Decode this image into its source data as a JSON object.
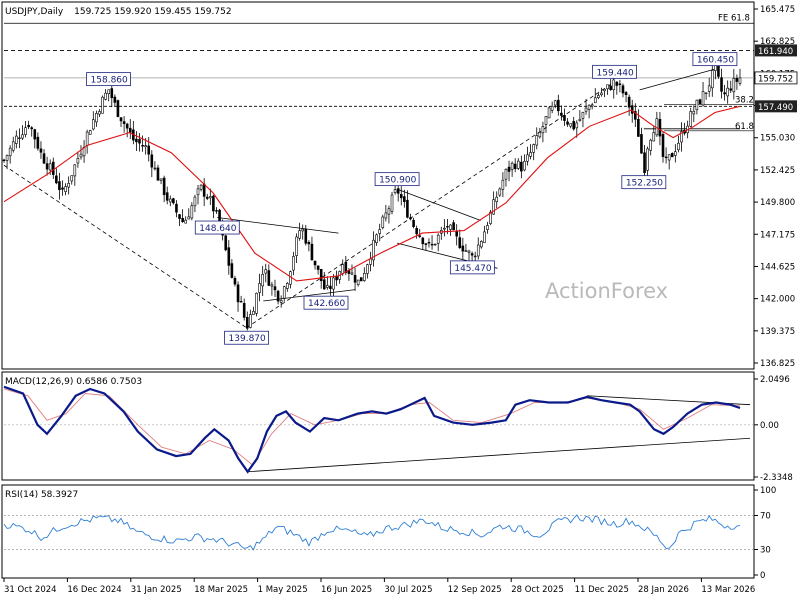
{
  "chart_data": {
    "type": "candlestick",
    "symbol_label": "USDJPY,Daily",
    "ohlc_readout": "159.725 159.920 159.455 159.752",
    "watermark": "ActionForex",
    "last_price": "159.752",
    "x_ticks": [
      "31 Oct 2024",
      "16 Dec 2024",
      "31 Jan 2025",
      "18 Mar 2025",
      "1 May 2025",
      "16 Jun 2025",
      "30 Jul 2025",
      "12 Sep 2025",
      "28 Oct 2025",
      "11 Dec 2025",
      "28 Jan 2026",
      "13 Mar 2026"
    ],
    "price_ticks": [
      "165.475",
      "162.825",
      "160.175",
      "157.525",
      "155.030",
      "152.425",
      "149.800",
      "147.175",
      "144.625",
      "142.000",
      "139.375",
      "136.825"
    ],
    "ylim": [
      136.825,
      165.475
    ],
    "levels": [
      {
        "label": "FE 61.8",
        "value": 164.1,
        "box": false
      },
      {
        "label": "161.940",
        "value": 161.94,
        "box": true
      },
      {
        "label": "157.490",
        "value": 157.49,
        "box": true
      }
    ],
    "fib_labels": [
      {
        "label": "38.2",
        "value": 157.8
      },
      {
        "label": "61.8",
        "value": 155.7
      }
    ],
    "swing_labels": [
      {
        "label": "158.860",
        "value": 158.86
      },
      {
        "label": "148.640",
        "value": 148.64
      },
      {
        "label": "139.870",
        "value": 139.87
      },
      {
        "label": "142.660",
        "value": 142.66
      },
      {
        "label": "150.900",
        "value": 150.9
      },
      {
        "label": "145.470",
        "value": 145.47
      },
      {
        "label": "159.440",
        "value": 159.44
      },
      {
        "label": "152.250",
        "value": 152.25
      },
      {
        "label": "160.450",
        "value": 160.45
      }
    ],
    "price_path": [
      [
        0,
        153.2
      ],
      [
        6,
        155.0
      ],
      [
        12,
        156.2
      ],
      [
        18,
        153.6
      ],
      [
        24,
        152.0
      ],
      [
        28,
        150.5
      ],
      [
        34,
        152.8
      ],
      [
        40,
        155.4
      ],
      [
        46,
        157.6
      ],
      [
        50,
        158.86
      ],
      [
        54,
        157.2
      ],
      [
        58,
        156.0
      ],
      [
        62,
        154.8
      ],
      [
        68,
        154.2
      ],
      [
        72,
        152.5
      ],
      [
        78,
        150.2
      ],
      [
        82,
        149.2
      ],
      [
        86,
        148.2
      ],
      [
        90,
        149.6
      ],
      [
        94,
        151.0
      ],
      [
        98,
        150.2
      ],
      [
        102,
        148.64
      ],
      [
        106,
        146.0
      ],
      [
        110,
        143.2
      ],
      [
        114,
        141.4
      ],
      [
        116,
        139.87
      ],
      [
        120,
        142.0
      ],
      [
        124,
        144.6
      ],
      [
        128,
        143.2
      ],
      [
        132,
        142.2
      ],
      [
        136,
        144.0
      ],
      [
        140,
        146.8
      ],
      [
        142,
        148.0
      ],
      [
        146,
        146.2
      ],
      [
        150,
        144.4
      ],
      [
        154,
        142.66
      ],
      [
        158,
        143.6
      ],
      [
        162,
        145.0
      ],
      [
        166,
        144.2
      ],
      [
        170,
        143.4
      ],
      [
        174,
        145.2
      ],
      [
        178,
        147.0
      ],
      [
        182,
        148.6
      ],
      [
        186,
        150.2
      ],
      [
        188,
        150.9
      ],
      [
        192,
        149.4
      ],
      [
        196,
        148.0
      ],
      [
        200,
        147.0
      ],
      [
        204,
        146.2
      ],
      [
        208,
        147.2
      ],
      [
        212,
        148.0
      ],
      [
        216,
        147.0
      ],
      [
        220,
        146.2
      ],
      [
        224,
        145.47
      ],
      [
        228,
        146.8
      ],
      [
        232,
        148.6
      ],
      [
        236,
        150.5
      ],
      [
        240,
        152.2
      ],
      [
        244,
        153.0
      ],
      [
        248,
        152.6
      ],
      [
        252,
        153.8
      ],
      [
        256,
        155.2
      ],
      [
        260,
        156.8
      ],
      [
        264,
        157.6
      ],
      [
        268,
        156.6
      ],
      [
        272,
        155.8
      ],
      [
        276,
        156.6
      ],
      [
        280,
        157.6
      ],
      [
        284,
        158.4
      ],
      [
        288,
        158.8
      ],
      [
        292,
        159.44
      ],
      [
        296,
        158.6
      ],
      [
        300,
        157.2
      ],
      [
        304,
        155.0
      ],
      [
        306,
        152.25
      ],
      [
        308,
        154.6
      ],
      [
        312,
        156.4
      ],
      [
        314,
        154.4
      ],
      [
        316,
        152.8
      ],
      [
        320,
        153.8
      ],
      [
        324,
        155.2
      ],
      [
        328,
        156.6
      ],
      [
        332,
        157.8
      ],
      [
        336,
        158.8
      ],
      [
        340,
        160.45
      ],
      [
        344,
        158.2
      ],
      [
        348,
        159.2
      ],
      [
        352,
        159.752
      ]
    ],
    "sma": [
      [
        0,
        149.9
      ],
      [
        20,
        152.0
      ],
      [
        40,
        154.4
      ],
      [
        60,
        155.4
      ],
      [
        80,
        153.8
      ],
      [
        100,
        150.6
      ],
      [
        120,
        145.8
      ],
      [
        140,
        143.6
      ],
      [
        160,
        144.0
      ],
      [
        180,
        145.8
      ],
      [
        200,
        147.4
      ],
      [
        220,
        147.6
      ],
      [
        240,
        149.8
      ],
      [
        260,
        153.4
      ],
      [
        280,
        155.9
      ],
      [
        300,
        157.2
      ],
      [
        310,
        156.0
      ],
      [
        320,
        155.0
      ],
      [
        330,
        155.9
      ],
      [
        340,
        157.0
      ],
      [
        352,
        157.49
      ]
    ],
    "trendlines": [
      [
        [
          0,
          152.8
        ],
        [
          116,
          139.87
        ]
      ],
      [
        [
          116,
          139.87
        ],
        [
          292,
          159.44
        ]
      ],
      [
        [
          102,
          148.64
        ],
        [
          160,
          147.4
        ]
      ],
      [
        [
          124,
          142.0
        ],
        [
          168,
          142.9
        ]
      ],
      [
        [
          188,
          150.9
        ],
        [
          228,
          148.4
        ]
      ],
      [
        [
          188,
          146.6
        ],
        [
          236,
          144.6
        ]
      ],
      [
        [
          304,
          158.8
        ],
        [
          340,
          160.45
        ]
      ],
      [
        [
          306,
          155.7
        ],
        [
          352,
          155.7
        ]
      ]
    ],
    "macd": {
      "label": "MACD(12,26,9) 0.6586 0.7503",
      "ticks": [
        "2.0496",
        "0.00",
        "-2.3348"
      ],
      "ylim": [
        -2.3348,
        2.0496
      ],
      "zero_label": "0.00",
      "main": [
        [
          0,
          1.7
        ],
        [
          8,
          1.4
        ],
        [
          14,
          0.0
        ],
        [
          18,
          -0.4
        ],
        [
          24,
          0.4
        ],
        [
          30,
          1.3
        ],
        [
          36,
          1.6
        ],
        [
          42,
          1.4
        ],
        [
          50,
          0.6
        ],
        [
          56,
          -0.3
        ],
        [
          64,
          -1.1
        ],
        [
          72,
          -1.4
        ],
        [
          78,
          -1.3
        ],
        [
          84,
          -0.6
        ],
        [
          88,
          -0.2
        ],
        [
          94,
          -0.7
        ],
        [
          98,
          -1.5
        ],
        [
          102,
          -2.1
        ],
        [
          106,
          -1.5
        ],
        [
          110,
          -0.3
        ],
        [
          114,
          0.4
        ],
        [
          118,
          0.6
        ],
        [
          122,
          0.1
        ],
        [
          128,
          -0.3
        ],
        [
          134,
          0.3
        ],
        [
          140,
          0.2
        ],
        [
          148,
          0.5
        ],
        [
          154,
          0.6
        ],
        [
          160,
          0.5
        ],
        [
          166,
          0.7
        ],
        [
          172,
          1.0
        ],
        [
          176,
          1.2
        ],
        [
          180,
          0.4
        ],
        [
          188,
          0.1
        ],
        [
          196,
          0.0
        ],
        [
          204,
          0.1
        ],
        [
          210,
          0.2
        ],
        [
          214,
          0.9
        ],
        [
          220,
          1.1
        ],
        [
          228,
          1.0
        ],
        [
          236,
          1.0
        ],
        [
          244,
          1.25
        ],
        [
          250,
          1.1
        ],
        [
          256,
          1.0
        ],
        [
          262,
          0.9
        ],
        [
          266,
          0.6
        ],
        [
          272,
          -0.2
        ],
        [
          276,
          -0.4
        ],
        [
          280,
          -0.1
        ],
        [
          286,
          0.5
        ],
        [
          292,
          0.9
        ],
        [
          298,
          1.0
        ],
        [
          304,
          0.9
        ],
        [
          308,
          0.75
        ]
      ],
      "signal": [
        [
          0,
          1.6
        ],
        [
          10,
          1.3
        ],
        [
          18,
          0.2
        ],
        [
          26,
          0.5
        ],
        [
          34,
          1.4
        ],
        [
          44,
          1.3
        ],
        [
          56,
          0.0
        ],
        [
          66,
          -1.0
        ],
        [
          76,
          -1.3
        ],
        [
          86,
          -0.7
        ],
        [
          96,
          -1.1
        ],
        [
          104,
          -1.8
        ],
        [
          112,
          -0.4
        ],
        [
          120,
          0.5
        ],
        [
          130,
          0.0
        ],
        [
          140,
          0.2
        ],
        [
          150,
          0.5
        ],
        [
          160,
          0.5
        ],
        [
          170,
          0.9
        ],
        [
          178,
          1.0
        ],
        [
          188,
          0.2
        ],
        [
          200,
          0.1
        ],
        [
          212,
          0.5
        ],
        [
          222,
          1.0
        ],
        [
          234,
          1.0
        ],
        [
          244,
          1.2
        ],
        [
          256,
          1.0
        ],
        [
          266,
          0.7
        ],
        [
          276,
          -0.2
        ],
        [
          286,
          0.3
        ],
        [
          296,
          0.9
        ],
        [
          308,
          0.85
        ]
      ],
      "trendlines": [
        [
          [
            102,
            -2.1
          ],
          [
            308,
            -0.6
          ]
        ],
        [
          [
            244,
            1.3
          ],
          [
            308,
            0.9
          ]
        ]
      ]
    },
    "rsi": {
      "label": "RSI(14) 58.3927",
      "ticks": [
        "100",
        "70",
        "30",
        "0"
      ],
      "ylim": [
        0,
        100
      ],
      "levels": [
        70,
        30
      ],
      "values": [
        [
          0,
          60
        ],
        [
          10,
          54
        ],
        [
          16,
          44
        ],
        [
          24,
          57
        ],
        [
          32,
          63
        ],
        [
          40,
          67
        ],
        [
          48,
          64
        ],
        [
          56,
          50
        ],
        [
          64,
          44
        ],
        [
          72,
          40
        ],
        [
          80,
          45
        ],
        [
          88,
          42
        ],
        [
          96,
          36
        ],
        [
          102,
          30
        ],
        [
          108,
          40
        ],
        [
          114,
          57
        ],
        [
          120,
          50
        ],
        [
          128,
          38
        ],
        [
          136,
          54
        ],
        [
          144,
          52
        ],
        [
          152,
          45
        ],
        [
          160,
          55
        ],
        [
          168,
          59
        ],
        [
          176,
          65
        ],
        [
          184,
          55
        ],
        [
          192,
          52
        ],
        [
          200,
          47
        ],
        [
          208,
          58
        ],
        [
          216,
          54
        ],
        [
          224,
          47
        ],
        [
          232,
          62
        ],
        [
          240,
          68
        ],
        [
          248,
          65
        ],
        [
          256,
          60
        ],
        [
          262,
          64
        ],
        [
          268,
          55
        ],
        [
          274,
          43
        ],
        [
          278,
          30
        ],
        [
          282,
          48
        ],
        [
          290,
          62
        ],
        [
          296,
          66
        ],
        [
          302,
          58
        ],
        [
          308,
          58.4
        ]
      ]
    }
  }
}
